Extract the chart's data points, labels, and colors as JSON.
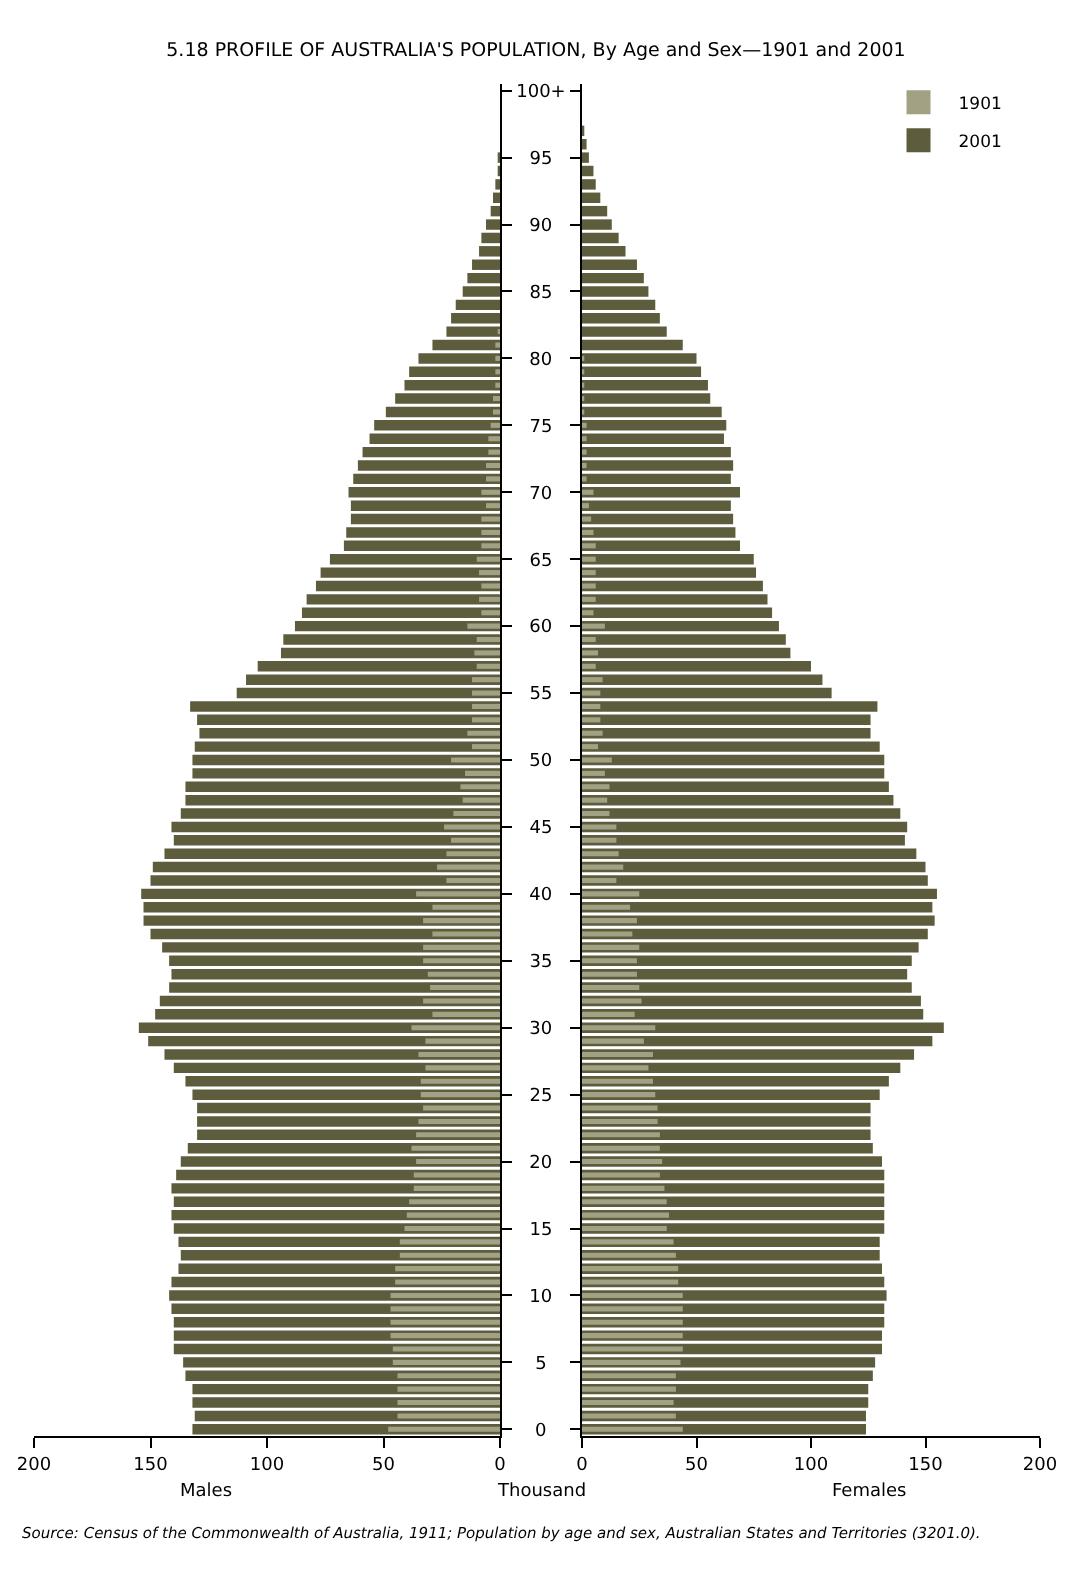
{
  "chart_data": [
    {
      "type": "bar",
      "orientation": "horizontal",
      "title": "5.18 PROFILE OF AUSTRALIA'S POPULATION, By Age and Sex—1901 and 2001",
      "xlabel": "Males",
      "x": [
        95,
        94,
        93,
        92,
        91,
        90,
        89,
        88,
        87,
        86,
        85,
        84,
        83,
        82,
        81,
        80,
        79,
        78,
        77,
        76,
        75,
        74,
        73,
        72,
        71,
        70,
        69,
        68,
        67,
        66,
        65,
        64,
        63,
        62,
        61,
        60,
        59,
        58,
        57,
        56,
        55,
        54,
        53,
        52,
        51,
        50,
        49,
        48,
        47,
        46,
        45,
        44,
        43,
        42,
        41,
        40,
        39,
        38,
        37,
        36,
        35,
        34,
        33,
        32,
        31,
        30,
        29,
        28,
        27,
        26,
        25,
        24,
        23,
        22,
        21,
        20,
        19,
        18,
        17,
        16,
        15,
        14,
        13,
        12,
        11,
        10,
        9,
        8,
        7,
        6,
        5,
        4,
        3,
        2,
        1,
        0
      ],
      "series": [
        {
          "color": "#a2a183",
          "values": [
            null,
            null,
            null,
            null,
            null,
            null,
            null,
            null,
            null,
            null,
            null,
            null,
            null,
            1,
            2,
            2,
            2,
            2,
            3,
            3,
            4,
            5,
            5,
            6,
            6,
            8,
            6,
            8,
            8,
            8,
            10,
            9,
            8,
            9,
            8,
            14,
            10,
            11,
            10,
            12,
            12,
            12,
            12,
            14,
            12,
            21,
            15,
            17,
            16,
            20,
            24,
            21,
            23,
            27,
            23,
            36,
            29,
            33,
            29,
            33,
            33,
            31,
            30,
            33,
            29,
            38,
            32,
            35,
            32,
            34,
            34,
            33,
            35,
            36,
            38,
            36,
            37,
            37,
            39,
            40,
            41,
            43,
            43,
            45,
            45,
            47,
            47,
            47,
            47,
            46,
            46,
            44,
            44,
            44,
            44,
            48
          ]
        },
        {
          "color": "#5d5d3d",
          "values": [
            1,
            1,
            2,
            3,
            4,
            6,
            8,
            9,
            12,
            14,
            16,
            19,
            21,
            23,
            29,
            35,
            39,
            41,
            45,
            49,
            54,
            56,
            59,
            61,
            63,
            65,
            64,
            64,
            66,
            67,
            73,
            77,
            79,
            83,
            85,
            88,
            93,
            94,
            104,
            109,
            113,
            133,
            130,
            129,
            131,
            132,
            132,
            135,
            135,
            137,
            141,
            140,
            144,
            149,
            150,
            154,
            153,
            153,
            150,
            145,
            142,
            141,
            142,
            146,
            148,
            155,
            151,
            144,
            140,
            135,
            132,
            130,
            130,
            130,
            134,
            137,
            139,
            141,
            140,
            141,
            140,
            138,
            137,
            138,
            141,
            142,
            141,
            140,
            140,
            140,
            136,
            135,
            132,
            132,
            131,
            132
          ]
        }
      ],
      "xlim": [
        200,
        0
      ],
      "xticks": [
        200,
        150,
        100,
        50,
        0
      ],
      "ylim": [
        -0.5,
        100.5
      ],
      "yticks": [
        0,
        5,
        10,
        15,
        20,
        25,
        30,
        35,
        40,
        45,
        50,
        55,
        60,
        65,
        70,
        75,
        80,
        85,
        90,
        95,
        {
          "value": 100,
          "label": "100+"
        }
      ],
      "annotations": [
        "Thousand",
        "Source: Census of the Commonwealth of Australia, 1911; Population by age and sex, Australian States and Territories (3201.0)."
      ]
    },
    {
      "type": "bar",
      "orientation": "horizontal",
      "xlabel": "Females",
      "x": [
        97,
        96,
        95,
        94,
        93,
        92,
        91,
        90,
        89,
        88,
        87,
        86,
        85,
        84,
        83,
        82,
        81,
        80,
        79,
        78,
        77,
        76,
        75,
        74,
        73,
        72,
        71,
        70,
        69,
        68,
        67,
        66,
        65,
        64,
        63,
        62,
        61,
        60,
        59,
        58,
        57,
        56,
        55,
        54,
        53,
        52,
        51,
        50,
        49,
        48,
        47,
        46,
        45,
        44,
        43,
        42,
        41,
        40,
        39,
        38,
        37,
        36,
        35,
        34,
        33,
        32,
        31,
        30,
        29,
        28,
        27,
        26,
        25,
        24,
        23,
        22,
        21,
        20,
        19,
        18,
        17,
        16,
        15,
        14,
        13,
        12,
        11,
        10,
        9,
        8,
        7,
        6,
        5,
        4,
        3,
        2,
        1,
        0
      ],
      "series": [
        {
          "name": "1901",
          "color": "#a2a183",
          "values": [
            null,
            null,
            null,
            null,
            null,
            null,
            null,
            null,
            null,
            null,
            null,
            null,
            null,
            null,
            null,
            null,
            null,
            1,
            1,
            1,
            1,
            1,
            2,
            2,
            2,
            2,
            2,
            5,
            3,
            4,
            5,
            6,
            6,
            6,
            6,
            6,
            5,
            10,
            6,
            7,
            6,
            9,
            8,
            8,
            8,
            9,
            7,
            13,
            10,
            12,
            11,
            12,
            15,
            15,
            16,
            18,
            15,
            25,
            21,
            24,
            22,
            25,
            24,
            24,
            25,
            26,
            23,
            32,
            27,
            31,
            29,
            31,
            32,
            33,
            33,
            34,
            34,
            35,
            34,
            36,
            37,
            38,
            37,
            40,
            41,
            42,
            42,
            44,
            44,
            44,
            44,
            44,
            43,
            41,
            41,
            40,
            41,
            44
          ]
        },
        {
          "name": "2001",
          "color": "#5d5d3d",
          "values": [
            1,
            2,
            3,
            5,
            6,
            8,
            11,
            13,
            16,
            19,
            24,
            27,
            29,
            32,
            34,
            37,
            44,
            50,
            52,
            55,
            56,
            61,
            63,
            62,
            65,
            66,
            65,
            69,
            65,
            66,
            67,
            69,
            75,
            76,
            79,
            81,
            83,
            86,
            89,
            91,
            100,
            105,
            109,
            129,
            126,
            126,
            130,
            132,
            132,
            134,
            136,
            139,
            142,
            141,
            146,
            150,
            151,
            155,
            153,
            154,
            151,
            147,
            144,
            142,
            144,
            148,
            149,
            158,
            153,
            145,
            139,
            134,
            130,
            126,
            126,
            126,
            127,
            131,
            132,
            132,
            132,
            132,
            132,
            130,
            130,
            131,
            132,
            133,
            132,
            132,
            131,
            131,
            128,
            127,
            125,
            125,
            124,
            124
          ]
        }
      ],
      "xlim": [
        0,
        200
      ],
      "xticks": [
        0,
        50,
        100,
        150,
        200
      ],
      "ylim": [
        -0.5,
        100.5
      ],
      "yticks": [
        0,
        5,
        10,
        15,
        20,
        25,
        30,
        35,
        40,
        45,
        50,
        55,
        60,
        65,
        70,
        75,
        80,
        85,
        90,
        95,
        100
      ],
      "tick_labels": "x",
      "legend": "top right"
    }
  ]
}
